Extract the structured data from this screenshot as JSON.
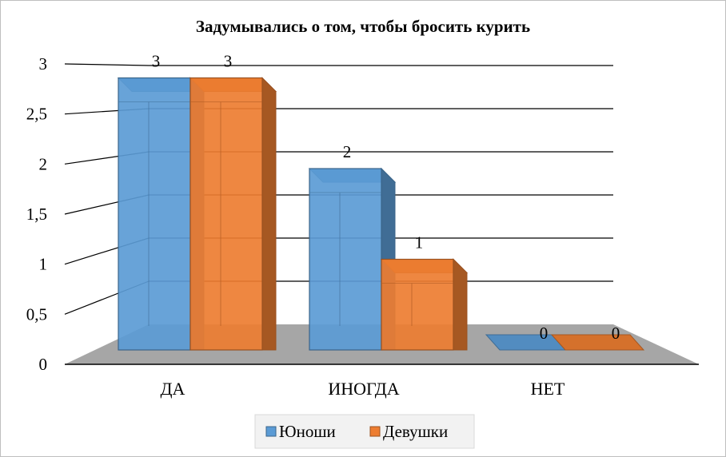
{
  "chart_data": {
    "type": "bar",
    "title": "Задумывались о том, чтобы бросить курить",
    "categories": [
      "ДА",
      "ИНОГДА",
      "НЕТ"
    ],
    "series": [
      {
        "name": "Юноши",
        "values": [
          3,
          2,
          0
        ],
        "color": "#5b9bd5"
      },
      {
        "name": "Девушки",
        "values": [
          3,
          1,
          0
        ],
        "color": "#ed7d31"
      }
    ],
    "yticks": [
      "0",
      "0,5",
      "1",
      "1,5",
      "2",
      "2,5",
      "3"
    ],
    "ylim": [
      0,
      3
    ],
    "grid": true,
    "legend": "bottom",
    "style": "3d-clustered-column"
  }
}
